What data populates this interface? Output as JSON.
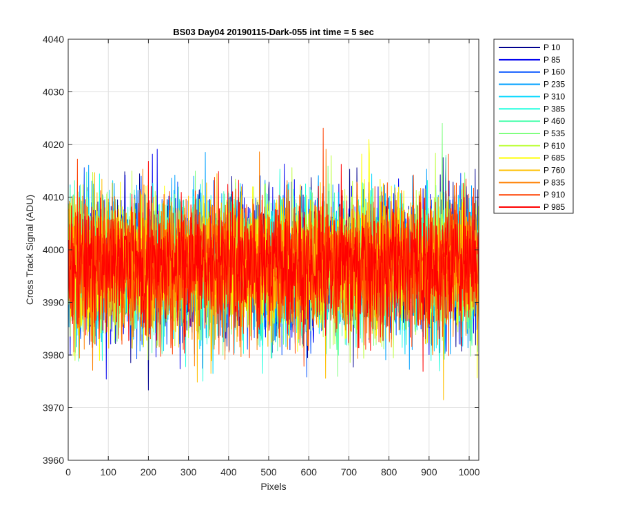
{
  "chart_data": {
    "type": "line",
    "title": "BS03 Day04 20190115-Dark-055 int time = 5 sec",
    "xlabel": "Pixels",
    "ylabel": "Cross Track Signal (ADU)",
    "xlim": [
      0,
      1024
    ],
    "ylim": [
      3960,
      4040
    ],
    "xticks": [
      0,
      100,
      200,
      300,
      400,
      500,
      600,
      700,
      800,
      900,
      1000
    ],
    "yticks": [
      3960,
      3970,
      3980,
      3990,
      4000,
      4010,
      4020,
      4030,
      4040
    ],
    "grid": true,
    "legend_position": "outside-top-right",
    "pixel_count": 1024,
    "series": [
      {
        "name": "P 10",
        "color": "#00008f",
        "mean": 3997.0,
        "noise_sd": 6.5,
        "seed": 11
      },
      {
        "name": "P 85",
        "color": "#0000ef",
        "mean": 3997.0,
        "noise_sd": 6.5,
        "seed": 23
      },
      {
        "name": "P 160",
        "color": "#0050ff",
        "mean": 3997.0,
        "noise_sd": 6.5,
        "seed": 37
      },
      {
        "name": "P 235",
        "color": "#00a0ff",
        "mean": 3997.0,
        "noise_sd": 6.5,
        "seed": 41
      },
      {
        "name": "P 310",
        "color": "#00d8ff",
        "mean": 3997.0,
        "noise_sd": 6.5,
        "seed": 53
      },
      {
        "name": "P 385",
        "color": "#20ffdf",
        "mean": 3997.0,
        "noise_sd": 6.5,
        "seed": 67
      },
      {
        "name": "P 460",
        "color": "#50ffaf",
        "mean": 3997.0,
        "noise_sd": 6.5,
        "seed": 71
      },
      {
        "name": "P 535",
        "color": "#80ff80",
        "mean": 3997.0,
        "noise_sd": 6.5,
        "seed": 83
      },
      {
        "name": "P 610",
        "color": "#bfff40",
        "mean": 3997.0,
        "noise_sd": 6.5,
        "seed": 97
      },
      {
        "name": "P 685",
        "color": "#ffff00",
        "mean": 3997.0,
        "noise_sd": 6.5,
        "seed": 101
      },
      {
        "name": "P 760",
        "color": "#ffc000",
        "mean": 3997.0,
        "noise_sd": 6.5,
        "seed": 113
      },
      {
        "name": "P 835",
        "color": "#ff8000",
        "mean": 3997.0,
        "noise_sd": 6.5,
        "seed": 127
      },
      {
        "name": "P 910",
        "color": "#ff4000",
        "mean": 3997.0,
        "noise_sd": 6.5,
        "seed": 131
      },
      {
        "name": "P 985",
        "color": "#ff0000",
        "mean": 3997.0,
        "noise_sd": 6.5,
        "seed": 139
      }
    ]
  }
}
